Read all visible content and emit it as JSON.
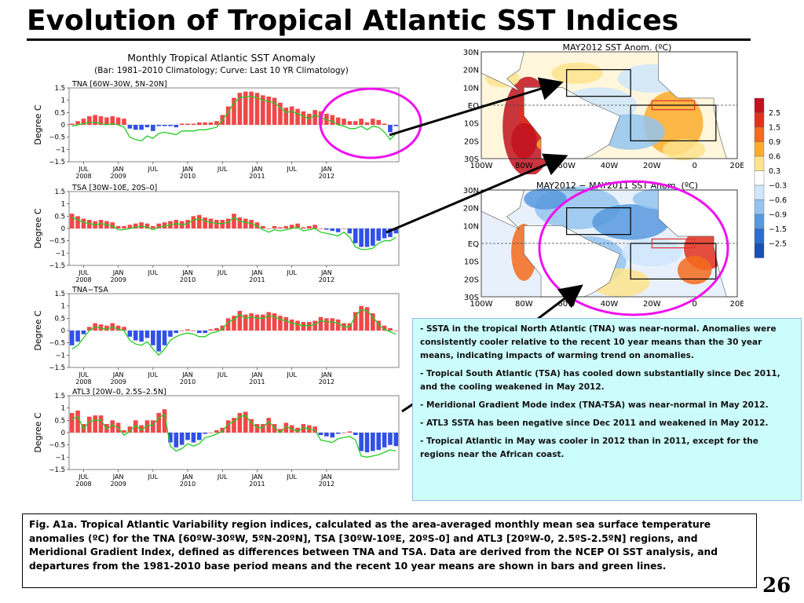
{
  "slide": {
    "title": "Evolution of Tropical Atlantic SST Indices",
    "page_number": "26",
    "figure_title": "Monthly Tropical Atlantic SST Anomaly",
    "figure_subtitle": "(Bar: 1981–2010 Climatology; Curve: Last 10 YR Climatology)",
    "ylabel": "Degree C",
    "yticks": [
      "1.5",
      "1",
      "0.5",
      "0",
      "−0.5",
      "−1",
      "−1.5"
    ],
    "xticks": [
      {
        "top": "JUL",
        "bottom": "2008"
      },
      {
        "top": "JAN",
        "bottom": "2009"
      },
      {
        "top": "JUL",
        "bottom": ""
      },
      {
        "top": "JAN",
        "bottom": "2010"
      },
      {
        "top": "JUL",
        "bottom": ""
      },
      {
        "top": "JAN",
        "bottom": "2011"
      },
      {
        "top": "JUL",
        "bottom": ""
      },
      {
        "top": "JAN",
        "bottom": "2012"
      }
    ],
    "bullets": [
      "SSTA in the tropical North Atlantic (TNA) was near-normal. Anomalies were consistently cooler relative to the recent 10 year means than the 30 year means, indicating impacts of warming trend on anomalies.",
      "Tropical South Atlantic (TSA) has cooled down substantially since Dec 2011, and the cooling weakened in May 2012.",
      "Meridional Gradient Mode index (TNA-TSA) was near-normal in May 2012.",
      "ATL3 SSTA has been negative since Dec 2011 and weakened in May 2012.",
      "Tropical Atlantic in May was cooler in 2012 than in 2011, except  for the regions near the African coast."
    ],
    "caption": "Fig. A1a. Tropical Atlantic Variability region indices, calculated as the area-averaged monthly mean sea surface temperature anomalies (ºC) for the TNA [60ºW-30ºW, 5ºN-20ºN], TSA [30ºW-10ºE, 20ºS-0] and ATL3 [20ºW-0, 2.5ºS-2.5ºN] regions, and Meridional Gradient Index, defined as differences between TNA and TSA. Data are derived from the NCEP OI SST analysis, and departures from the 1981-2010 base period means and the recent 10 year means are shown in bars and green lines."
  },
  "maps": [
    {
      "title": "MAY2012 SST Anom. (ºC)",
      "lat_labels": [
        "30N",
        "20N",
        "10N",
        "EQ",
        "10S",
        "20S",
        "30S"
      ],
      "lon_labels": [
        "100W",
        "80W",
        "60W",
        "40W",
        "20W",
        "0",
        "20E"
      ]
    },
    {
      "title": "MAY2012 − MAY2011 SST Anom. (ºC)",
      "lat_labels": [
        "30N",
        "20N",
        "10N",
        "EQ",
        "10S",
        "20S",
        "30S"
      ],
      "lon_labels": [
        "100W",
        "80W",
        "60W",
        "40W",
        "20W",
        "0",
        "20E"
      ]
    }
  ],
  "colorbar": {
    "labels": [
      "2.5",
      "1.5",
      "0.9",
      "0.6",
      "0.3",
      "−0.3",
      "−0.6",
      "−0.9",
      "−1.5",
      "−2.5"
    ],
    "colors": [
      "#c1121f",
      "#e3301c",
      "#f36b1c",
      "#fbab2b",
      "#fde38c",
      "#ffffff",
      "#cfe6fb",
      "#94c4ef",
      "#5799dd",
      "#2a6ccf",
      "#1a4fb6"
    ]
  },
  "colors": {
    "positive_bar": "#f04848",
    "negative_bar": "#3050e8",
    "curve": "#22cc22",
    "highlight": "#ee11ee"
  },
  "chart_data": [
    {
      "type": "bar",
      "title": "TNA [60W–30W, 5N–20N]",
      "xlabel": "",
      "ylabel": "Degree C",
      "ylim": [
        -1.5,
        1.5
      ],
      "x_start": "2008-05",
      "series": [
        {
          "name": "Bar: 1981–2010 Climatology",
          "values": [
            0.05,
            0.15,
            0.25,
            0.35,
            0.4,
            0.35,
            0.3,
            0.35,
            0.3,
            0.25,
            -0.15,
            -0.2,
            -0.2,
            -0.1,
            -0.25,
            -0.05,
            -0.05,
            -0.05,
            -0.1,
            0.05,
            0.05,
            0.05,
            0.1,
            0.1,
            0.1,
            0.15,
            0.4,
            0.75,
            1.1,
            1.3,
            1.35,
            1.35,
            1.3,
            1.2,
            1.15,
            1.1,
            0.9,
            0.7,
            0.75,
            0.65,
            0.55,
            0.45,
            0.6,
            0.55,
            0.45,
            0.4,
            0.3,
            0.25,
            0.15,
            0.15,
            0.25,
            0.1,
            0.25,
            0.2,
            0.05,
            -0.3,
            -0.05
          ]
        },
        {
          "name": "Curve: Last 10 YR Climatology",
          "values": [
            -0.05,
            0.0,
            0.05,
            0.1,
            0.1,
            0.05,
            0.0,
            0.05,
            0.0,
            -0.1,
            -0.5,
            -0.6,
            -0.65,
            -0.45,
            -0.55,
            -0.35,
            -0.3,
            -0.35,
            -0.4,
            -0.25,
            -0.25,
            -0.25,
            -0.2,
            -0.2,
            -0.15,
            -0.1,
            0.2,
            0.5,
            0.9,
            1.1,
            1.15,
            1.15,
            1.1,
            1.0,
            0.95,
            0.9,
            0.7,
            0.5,
            0.55,
            0.45,
            0.35,
            0.25,
            0.4,
            0.3,
            0.2,
            0.15,
            0.0,
            -0.05,
            -0.15,
            -0.15,
            -0.05,
            -0.2,
            -0.05,
            -0.1,
            -0.3,
            -0.6,
            -0.35
          ]
        }
      ]
    },
    {
      "type": "bar",
      "title": "TSA [30W–10E, 20S–0]",
      "xlabel": "",
      "ylabel": "Degree C",
      "ylim": [
        -1.5,
        1.5
      ],
      "x_start": "2008-05",
      "series": [
        {
          "name": "Bar: 1981–2010 Climatology",
          "values": [
            0.6,
            0.5,
            0.4,
            0.35,
            0.3,
            0.35,
            0.3,
            0.25,
            0.1,
            0.1,
            0.15,
            0.2,
            0.25,
            0.2,
            0.1,
            0.2,
            0.25,
            0.3,
            0.35,
            0.3,
            0.35,
            0.5,
            0.55,
            0.45,
            0.4,
            0.35,
            0.35,
            0.4,
            0.6,
            0.45,
            0.4,
            0.35,
            0.25,
            0.1,
            0.0,
            0.1,
            0.05,
            0.1,
            0.15,
            0.2,
            0.05,
            0.1,
            0.15,
            0.0,
            -0.05,
            -0.1,
            -0.15,
            0.0,
            -0.2,
            -0.6,
            -0.75,
            -0.75,
            -0.7,
            -0.5,
            -0.4,
            -0.35,
            -0.2
          ]
        },
        {
          "name": "Curve: Last 10 YR Climatology",
          "values": [
            0.45,
            0.35,
            0.25,
            0.2,
            0.15,
            0.2,
            0.15,
            0.1,
            -0.05,
            -0.05,
            0.0,
            0.05,
            0.1,
            0.05,
            -0.05,
            0.05,
            0.1,
            0.15,
            0.2,
            0.15,
            0.2,
            0.35,
            0.4,
            0.3,
            0.25,
            0.2,
            0.2,
            0.25,
            0.45,
            0.3,
            0.25,
            0.2,
            0.1,
            -0.05,
            -0.15,
            -0.05,
            -0.1,
            -0.05,
            0.0,
            0.05,
            -0.1,
            -0.05,
            0.0,
            -0.15,
            -0.2,
            -0.25,
            -0.3,
            -0.15,
            -0.35,
            -0.75,
            -0.85,
            -0.85,
            -0.8,
            -0.6,
            -0.5,
            -0.5,
            -0.35
          ]
        }
      ]
    },
    {
      "type": "bar",
      "title": "TNA−TSA",
      "xlabel": "",
      "ylabel": "Degree C",
      "ylim": [
        -1.5,
        1.5
      ],
      "x_start": "2008-05",
      "series": [
        {
          "name": "Bar: 1981–2010 Climatology",
          "values": [
            -0.6,
            -0.45,
            -0.15,
            0.15,
            0.3,
            0.25,
            0.2,
            0.3,
            0.2,
            0.15,
            -0.25,
            -0.4,
            -0.45,
            -0.3,
            -0.6,
            -0.85,
            -0.6,
            -0.25,
            -0.1,
            0.0,
            0.05,
            0.0,
            -0.1,
            -0.1,
            0.05,
            0.1,
            0.2,
            0.5,
            0.6,
            0.8,
            0.65,
            0.7,
            0.65,
            0.65,
            0.75,
            0.7,
            0.6,
            0.55,
            0.45,
            0.4,
            0.35,
            0.35,
            0.4,
            0.55,
            0.5,
            0.5,
            0.45,
            0.3,
            0.3,
            0.75,
            1.0,
            0.95,
            0.7,
            0.4,
            0.2,
            0.1,
            0.0
          ]
        },
        {
          "name": "Curve: Last 10 YR Climatology",
          "values": [
            -0.75,
            -0.6,
            -0.3,
            0.0,
            0.15,
            0.1,
            0.05,
            0.15,
            0.05,
            0.0,
            -0.4,
            -0.55,
            -0.6,
            -0.45,
            -0.75,
            -1.0,
            -0.75,
            -0.4,
            -0.25,
            -0.15,
            -0.1,
            -0.15,
            -0.25,
            -0.25,
            -0.1,
            -0.05,
            0.05,
            0.35,
            0.45,
            0.65,
            0.5,
            0.55,
            0.5,
            0.5,
            0.6,
            0.55,
            0.45,
            0.4,
            0.3,
            0.25,
            0.2,
            0.2,
            0.25,
            0.4,
            0.35,
            0.35,
            0.3,
            0.15,
            0.15,
            0.6,
            0.85,
            0.8,
            0.55,
            0.25,
            0.05,
            -0.05,
            -0.15
          ]
        }
      ]
    },
    {
      "type": "bar",
      "title": "ATL3 [20W–0, 2.5S–2.5N]",
      "xlabel": "",
      "ylabel": "Degree C",
      "ylim": [
        -1.5,
        1.5
      ],
      "x_start": "2008-05",
      "series": [
        {
          "name": "Bar: 1981–2010 Climatology",
          "values": [
            0.8,
            0.9,
            0.35,
            0.65,
            0.7,
            0.7,
            0.35,
            0.5,
            0.4,
            0.1,
            0.25,
            0.5,
            0.3,
            0.5,
            0.5,
            0.8,
            0.95,
            -0.4,
            -0.6,
            -0.5,
            -0.3,
            -0.4,
            -0.3,
            -0.05,
            0.0,
            0.1,
            0.2,
            0.5,
            0.6,
            0.8,
            0.85,
            0.55,
            0.35,
            0.35,
            0.6,
            0.35,
            0.15,
            0.4,
            0.3,
            0.2,
            0.35,
            0.3,
            0.25,
            -0.1,
            -0.15,
            -0.2,
            -0.05,
            0.0,
            0.05,
            -0.1,
            -0.75,
            -0.8,
            -0.75,
            -0.7,
            -0.6,
            -0.5,
            -0.55
          ]
        },
        {
          "name": "Curve: Last 10 YR Climatology",
          "values": [
            0.55,
            0.65,
            0.15,
            0.45,
            0.5,
            0.5,
            0.15,
            0.3,
            0.2,
            -0.1,
            0.05,
            0.3,
            0.1,
            0.3,
            0.3,
            0.6,
            0.75,
            -0.55,
            -0.75,
            -0.65,
            -0.45,
            -0.55,
            -0.45,
            -0.2,
            -0.15,
            -0.05,
            0.05,
            0.35,
            0.45,
            0.65,
            0.7,
            0.4,
            0.2,
            0.2,
            0.45,
            0.2,
            0.0,
            0.25,
            0.15,
            0.05,
            0.2,
            0.15,
            0.1,
            -0.3,
            -0.35,
            -0.4,
            -0.25,
            -0.2,
            -0.15,
            -0.3,
            -0.95,
            -1.0,
            -0.95,
            -0.9,
            -0.8,
            -0.7,
            -0.75
          ]
        }
      ]
    }
  ]
}
